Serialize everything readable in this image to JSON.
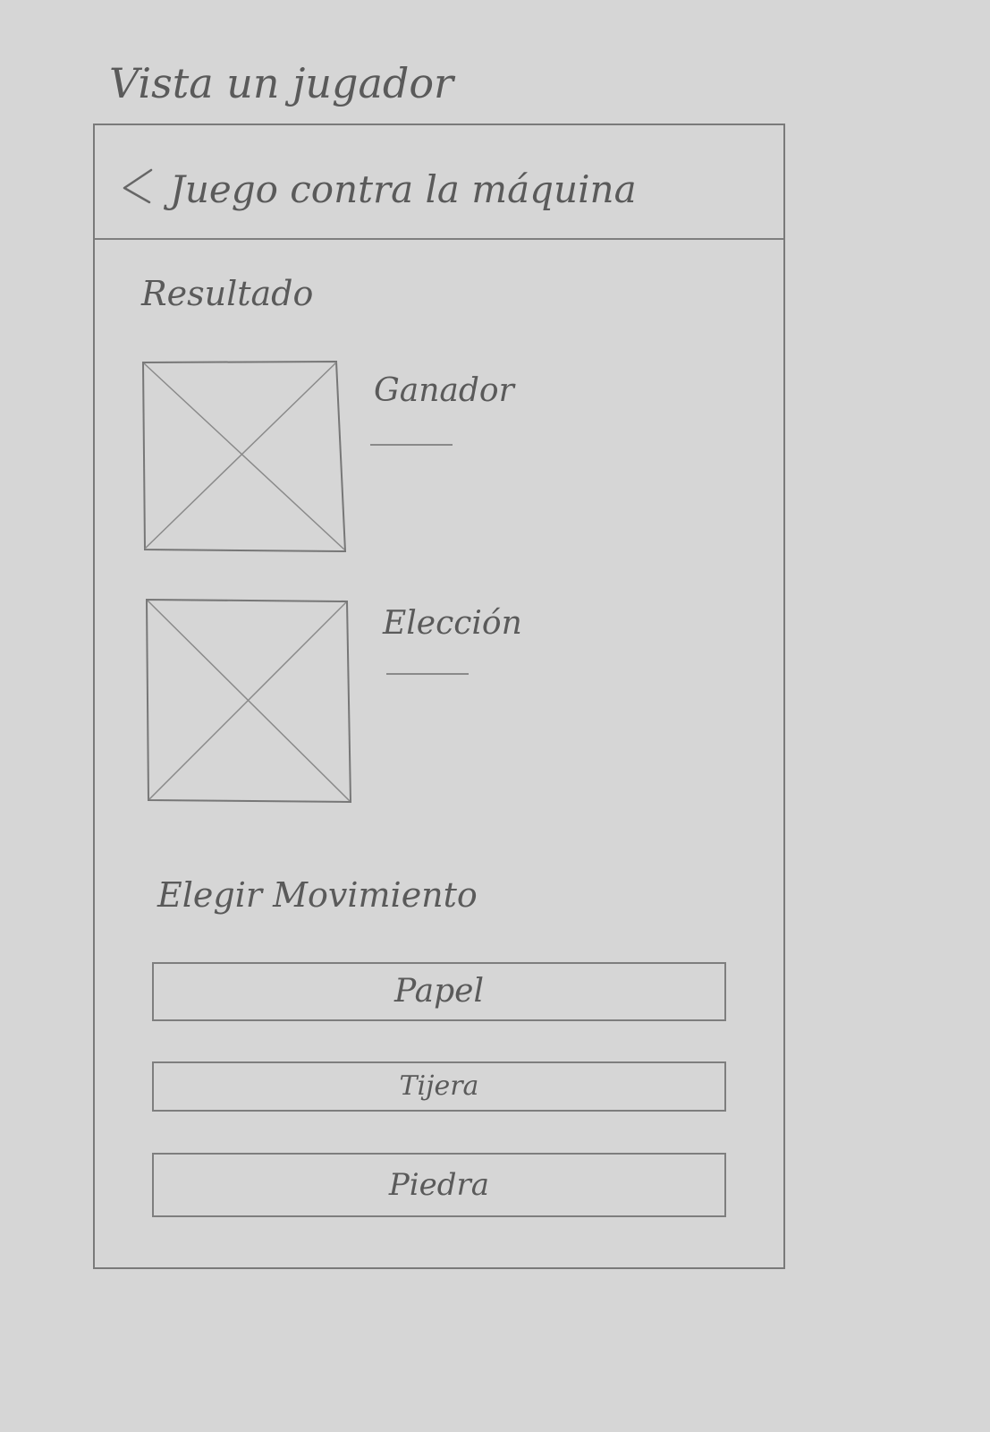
{
  "sheet": {
    "title": "Vista un jugador"
  },
  "appbar": {
    "back_icon": "chevron-left-icon",
    "title": "Juego contra la máquina"
  },
  "result": {
    "title": "Resultado",
    "winner_label": "Ganador",
    "winner_value": "",
    "choice_label": "Elección",
    "choice_value": ""
  },
  "move": {
    "title": "Elegir Movimiento",
    "buttons": [
      "Papel",
      "Tijera",
      "Piedra"
    ]
  },
  "colors": {
    "background": "#d6d6d6",
    "pencil": "#5a5a5a"
  }
}
